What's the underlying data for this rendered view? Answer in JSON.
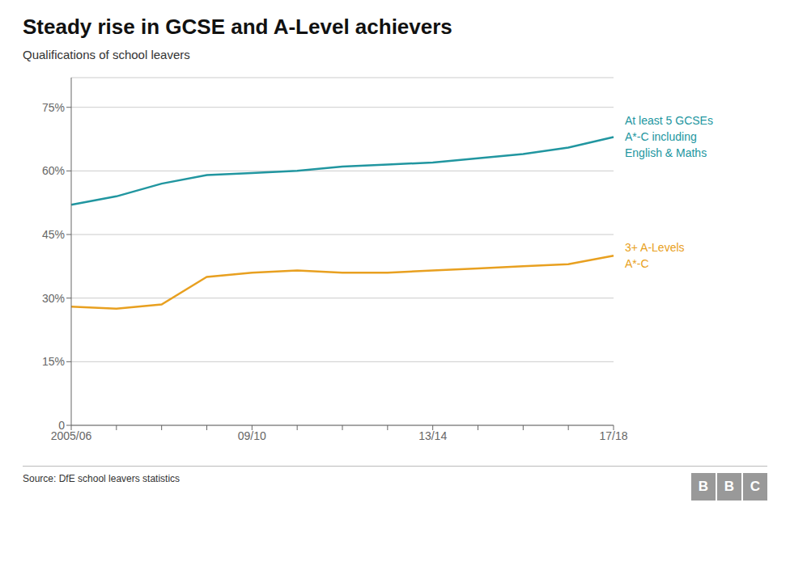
{
  "chart_data": {
    "type": "line",
    "title": "Steady rise in GCSE and A-Level achievers",
    "subtitle": "Qualifications of school leavers",
    "annotations": [
      "Source: DfE school leavers statistics",
      "BBC"
    ],
    "categories": [
      "2005/06",
      null,
      null,
      null,
      "09/10",
      null,
      null,
      null,
      "13/14",
      null,
      null,
      null,
      "17/18"
    ],
    "series": [
      {
        "name": "At least 5 GCSEs\nA*-C including\nEnglish & Maths",
        "color": "#2196a0",
        "values": [
          52.0,
          54.0,
          57.0,
          59.0,
          59.5,
          60.0,
          61.0,
          61.5,
          62.0,
          63.0,
          64.0,
          65.5,
          68.0
        ]
      },
      {
        "name": "3+ A-Levels\nA*-C",
        "color": "#e8a020",
        "values": [
          28.0,
          27.5,
          28.5,
          35.0,
          36.0,
          36.5,
          36.0,
          36.0,
          36.5,
          37.0,
          37.5,
          38.0,
          40.0
        ]
      }
    ],
    "ylim": [
      0,
      82
    ],
    "yticks": [
      0,
      {
        "value": 15,
        "label": "15%"
      },
      {
        "value": 30,
        "label": "30%"
      },
      {
        "value": 45,
        "label": "45%"
      },
      {
        "value": 60,
        "label": "60%"
      },
      {
        "value": 75,
        "label": "75%"
      }
    ],
    "grid": true
  }
}
